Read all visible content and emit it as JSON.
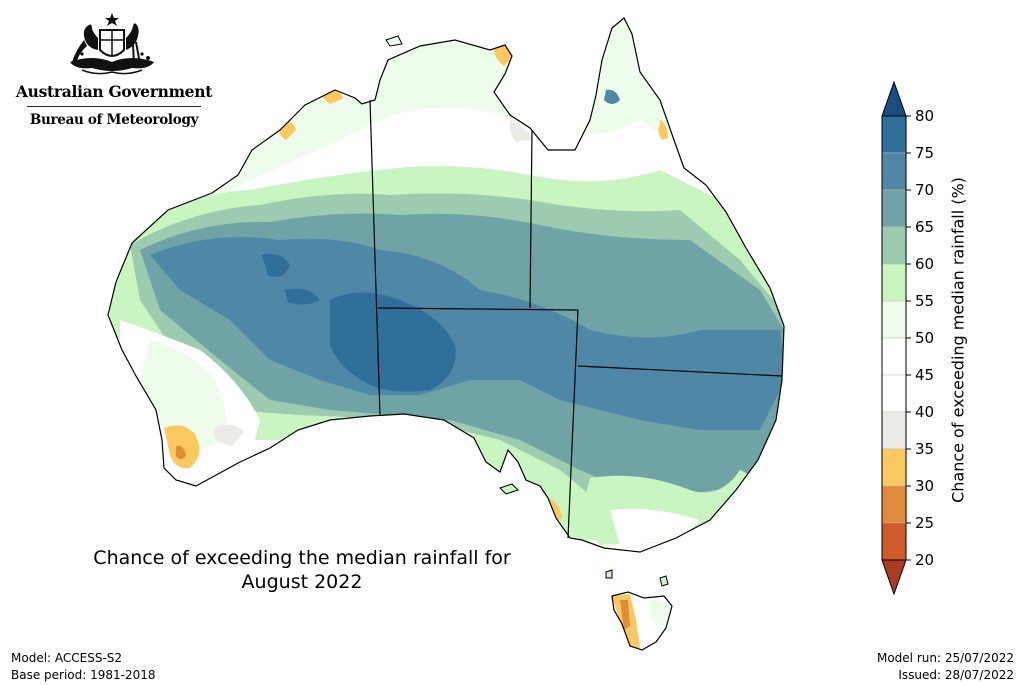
{
  "header": {
    "government": "Australian Government",
    "bureau": "Bureau of Meteorology",
    "crest_icon": "coat-of-arms-icon"
  },
  "map": {
    "title": "Chance of exceeding the median rainfall for\nAugust 2022",
    "region": "Australia",
    "ocean_color": "#ffffff",
    "border_color": "#000000"
  },
  "legend": {
    "title": "Chance of exceeding median rainfall (%)",
    "min": 20,
    "max": 80,
    "step": 5,
    "ticks": [
      "80",
      "75",
      "70",
      "65",
      "60",
      "55",
      "50",
      "45",
      "40",
      "35",
      "30",
      "25",
      "20"
    ],
    "bins": [
      {
        "from": 75,
        "to": 80,
        "color": "#2f6f9a"
      },
      {
        "from": 70,
        "to": 75,
        "color": "#4f87a6"
      },
      {
        "from": 65,
        "to": 70,
        "color": "#6fa3a6"
      },
      {
        "from": 60,
        "to": 65,
        "color": "#9dcbb0"
      },
      {
        "from": 55,
        "to": 60,
        "color": "#c8f5c0"
      },
      {
        "from": 50,
        "to": 55,
        "color": "#eefcec"
      },
      {
        "from": 45,
        "to": 50,
        "color": "#ffffff"
      },
      {
        "from": 40,
        "to": 45,
        "color": "#ffffff"
      },
      {
        "from": 35,
        "to": 40,
        "color": "#ecebe6"
      },
      {
        "from": 30,
        "to": 35,
        "color": "#fbc95f"
      },
      {
        "from": 25,
        "to": 30,
        "color": "#df8b3a"
      },
      {
        "from": 20,
        "to": 25,
        "color": "#cf5a2a"
      }
    ],
    "over_color": "#1a4d86",
    "under_color": "#a83d22",
    "extra_color_low": "#b2462a"
  },
  "footer": {
    "model": "Model: ACCESS-S2",
    "base_period": "Base period: 1981-2018",
    "model_run": "Model run: 25/07/2022",
    "issued": "Issued: 28/07/2022"
  }
}
